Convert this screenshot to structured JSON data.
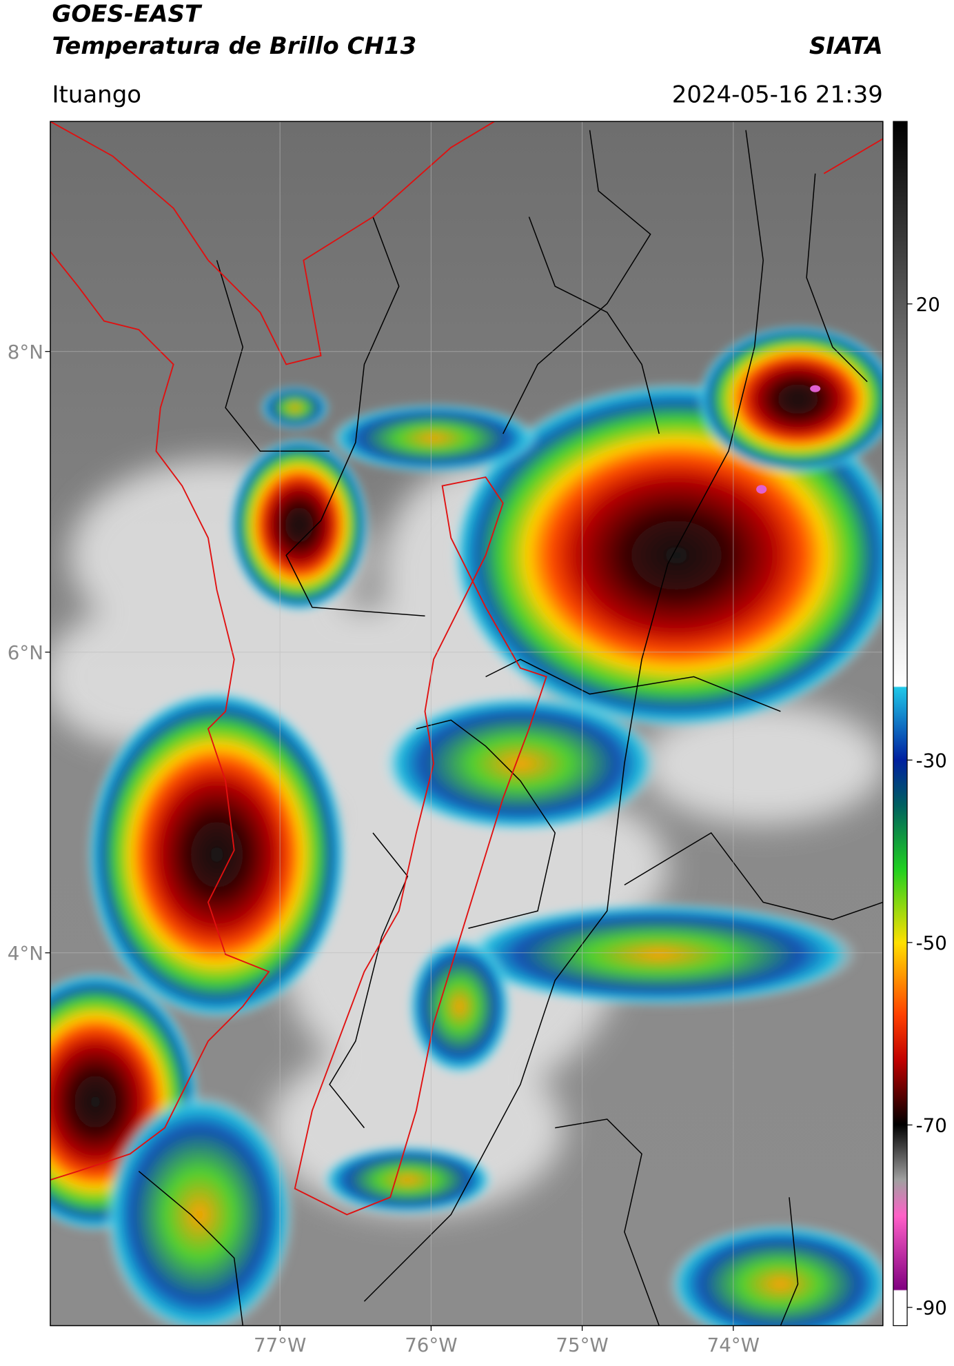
{
  "header": {
    "title": "GOES-EAST",
    "subtitle": "Temperatura de Brillo CH13",
    "brand": "SIATA",
    "location": "Ituango",
    "datetime": "2024-05-16 21:39"
  },
  "map": {
    "xlim": [
      -78.52,
      -73.01
    ],
    "ylim": [
      1.52,
      9.53
    ],
    "xticks": [
      {
        "value": -77,
        "label": "77°W"
      },
      {
        "value": -76,
        "label": "76°W"
      },
      {
        "value": -75,
        "label": "75°W"
      },
      {
        "value": -74,
        "label": "74°W"
      }
    ],
    "yticks": [
      {
        "value": 8,
        "label": "8°N"
      },
      {
        "value": 6,
        "label": "6°N"
      },
      {
        "value": 4,
        "label": "4°N"
      }
    ]
  },
  "colorbar": {
    "lim": [
      -92,
      40
    ],
    "ticks": [
      20,
      -30,
      -50,
      -70,
      -90
    ]
  }
}
